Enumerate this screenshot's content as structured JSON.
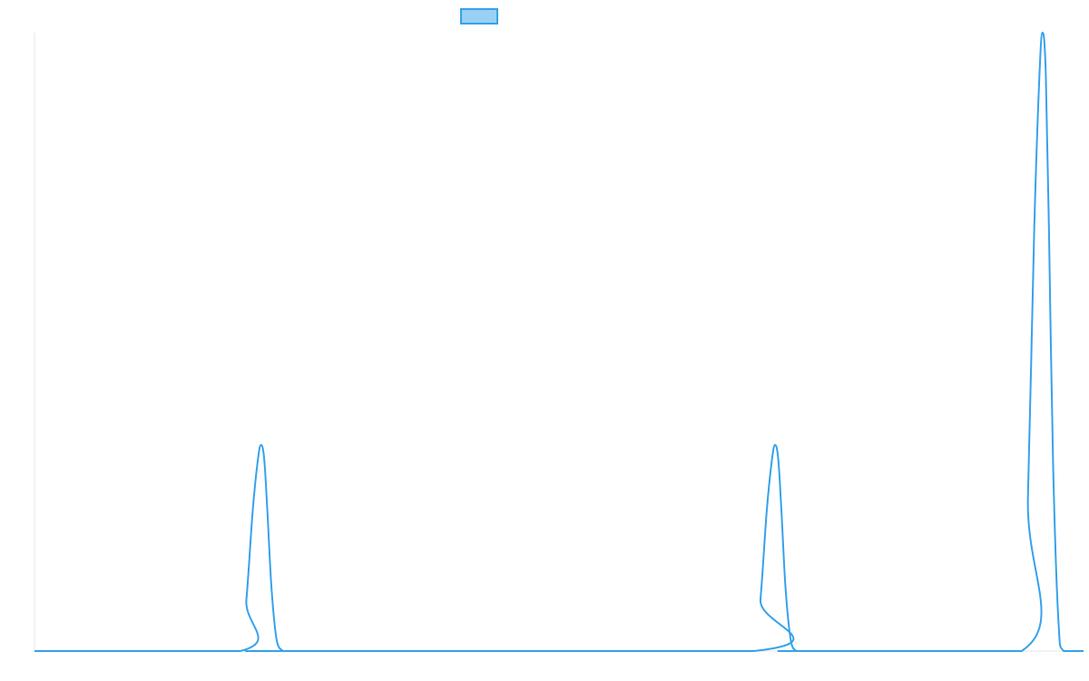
{
  "chart_data": {
    "type": "line",
    "title": "",
    "xlabel": "",
    "ylabel": "",
    "legend": {
      "placement": "top-center",
      "entries": [
        {
          "name": "",
          "swatch_fill": "#9ad0f5",
          "swatch_stroke": "#36a2eb"
        }
      ]
    },
    "grid": false,
    "xlim": [
      0,
      100
    ],
    "ylim": [
      0,
      3
    ],
    "series": [
      {
        "name": "",
        "color": "#36a2eb",
        "x": [
          0,
          19.6,
          20.2,
          20.8,
          21.3,
          21.6,
          21.9,
          22.2,
          22.6,
          23.1,
          23.7,
          23.7,
          68.6,
          69.2,
          69.8,
          70.3,
          70.6,
          70.9,
          71.2,
          71.6,
          72.1,
          72.6,
          72.6,
          94.1,
          94.7,
          95.3,
          95.8,
          96.1,
          96.4,
          96.7,
          97.1,
          97.6,
          98.1,
          100
        ],
        "y": [
          0,
          0,
          0.25,
          0.68,
          0.93,
          1.0,
          0.93,
          0.68,
          0.3,
          0.05,
          0,
          0,
          0,
          0.25,
          0.68,
          0.93,
          1.0,
          0.93,
          0.68,
          0.3,
          0.05,
          0,
          0,
          0,
          0.75,
          2.05,
          2.8,
          3.0,
          2.8,
          2.05,
          0.9,
          0.15,
          0,
          0
        ]
      }
    ]
  }
}
